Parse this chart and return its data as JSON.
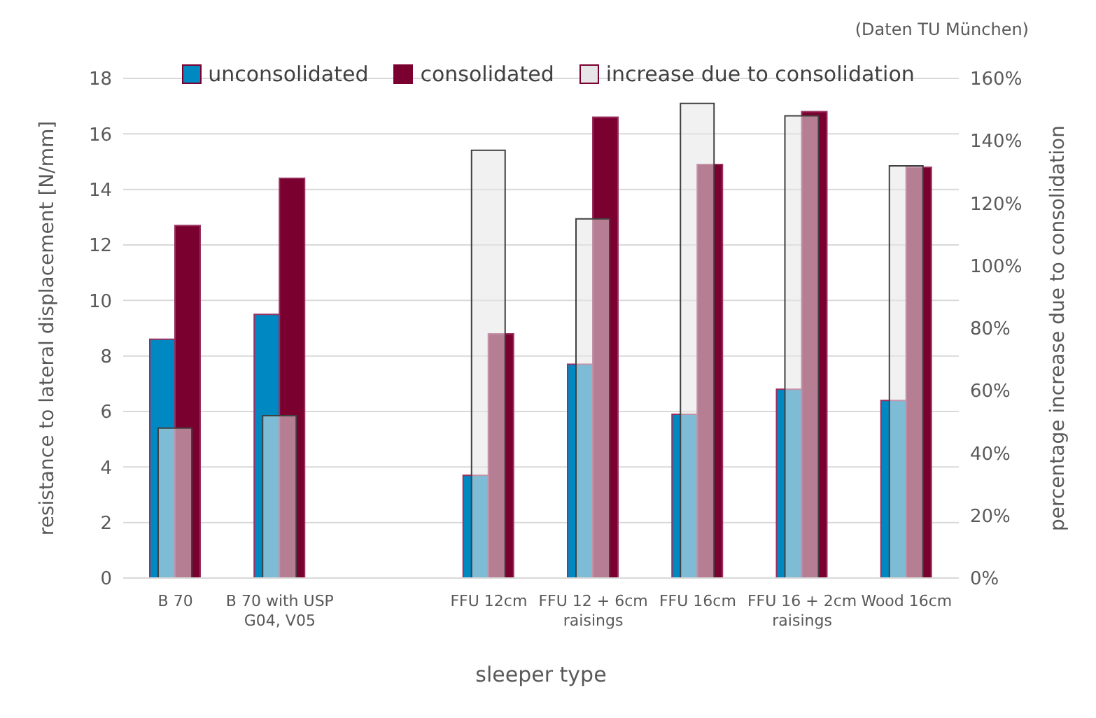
{
  "chart_data": {
    "type": "bar",
    "categories": [
      "B 70",
      "B 70 with USP G04, V05",
      null,
      "FFU 12cm",
      "FFU 12 + 6cm raisings",
      "FFU 16cm",
      "FFU 16 + 2cm raisings",
      "Wood 16cm"
    ],
    "series": [
      {
        "name": "unconsolidated",
        "color": "#0088c2",
        "values": [
          8.6,
          9.5,
          null,
          3.7,
          7.7,
          5.9,
          6.8,
          6.4
        ]
      },
      {
        "name": "consolidated",
        "color": "#7a0030",
        "values": [
          12.7,
          14.4,
          null,
          8.8,
          16.6,
          14.9,
          16.8,
          14.8
        ]
      },
      {
        "name": "increase due to consolidation",
        "color": "#e6e6e6",
        "axis": "y2",
        "values": [
          48,
          52,
          null,
          137,
          115,
          152,
          148,
          132
        ]
      }
    ],
    "xlabel": "sleeper type",
    "ylabel": "resistance to lateral displacement [N/mm]",
    "y2label": "percentage increase due to consolidation",
    "ylim": [
      0,
      18
    ],
    "yticks": [
      0,
      2,
      4,
      6,
      8,
      10,
      12,
      14,
      16,
      18
    ],
    "y2lim": [
      0,
      160
    ],
    "y2ticks": [
      {
        "value": 0,
        "label": "0%"
      },
      {
        "value": 20,
        "label": "20%"
      },
      {
        "value": 40,
        "label": "40%"
      },
      {
        "value": 60,
        "label": "60%"
      },
      {
        "value": 80,
        "label": "80%"
      },
      {
        "value": 100,
        "label": "100%"
      },
      {
        "value": 120,
        "label": "120%"
      },
      {
        "value": 140,
        "label": "140%"
      },
      {
        "value": 160,
        "label": "160%"
      }
    ],
    "grid": "y",
    "legend": "top",
    "annotations": [
      "(Daten TU München)"
    ]
  }
}
